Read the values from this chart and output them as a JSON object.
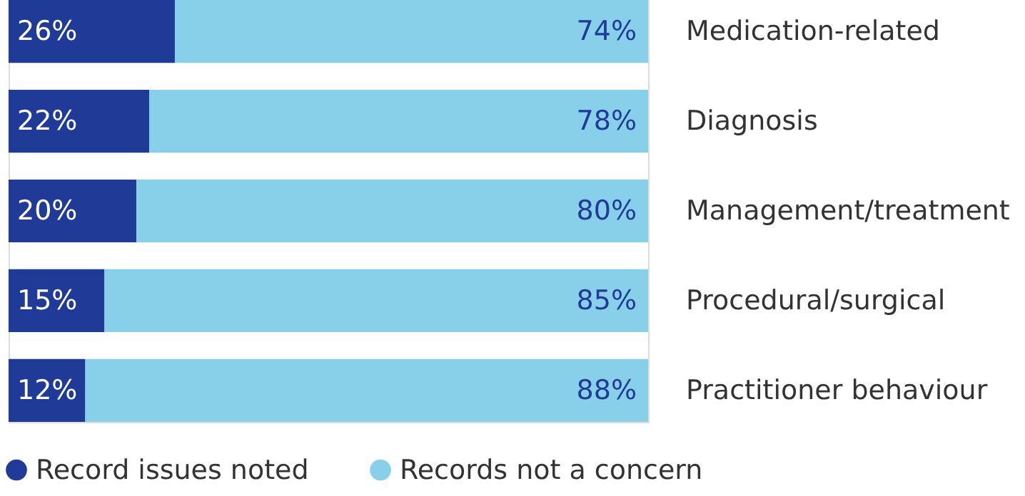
{
  "chart_data": {
    "type": "bar",
    "orientation": "horizontal",
    "stacked": true,
    "data_labels": true,
    "legend": "bottom left",
    "grid": false,
    "categories": [
      "Medication-related",
      "Diagnosis",
      "Management/treatment",
      "Procedural/surgical",
      "Practitioner behaviour"
    ],
    "series": [
      {
        "name": "Record issues noted",
        "color": "#1f3a97",
        "values": [
          26,
          22,
          20,
          15,
          12
        ],
        "value_labels": [
          "26%",
          "22%",
          "20%",
          "15%",
          "12%"
        ]
      },
      {
        "name": "Records not a concern",
        "color": "#88d0ea",
        "values": [
          74,
          78,
          80,
          85,
          88
        ],
        "value_labels": [
          "74%",
          "78%",
          "80%",
          "85%",
          "88%"
        ]
      }
    ]
  }
}
